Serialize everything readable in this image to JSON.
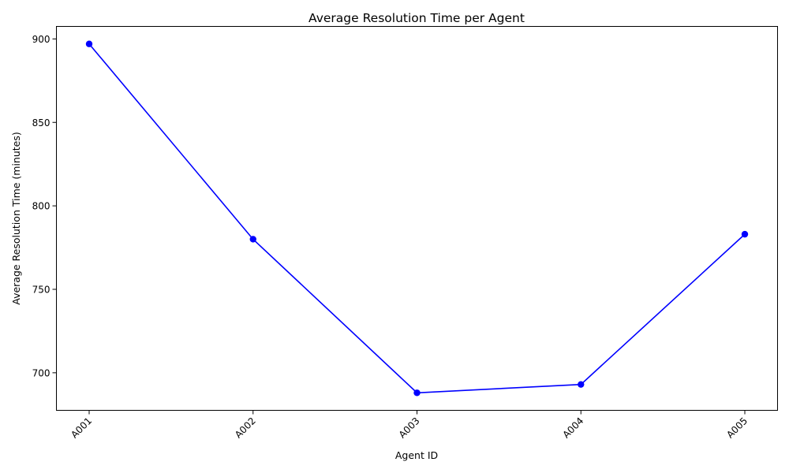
{
  "chart_data": {
    "type": "line",
    "title": "Average Resolution Time per Agent",
    "xlabel": "Agent ID",
    "ylabel": "Average Resolution Time (minutes)",
    "categories": [
      "A001",
      "A002",
      "A003",
      "A004",
      "A005"
    ],
    "series": [
      {
        "values": [
          897,
          780,
          688,
          693,
          783
        ],
        "color": "#0000ff",
        "marker": "circle"
      }
    ],
    "yticks": [
      700,
      750,
      800,
      850,
      900
    ],
    "ylim": [
      677.5,
      907.5
    ],
    "grid": false,
    "legend": "none"
  }
}
